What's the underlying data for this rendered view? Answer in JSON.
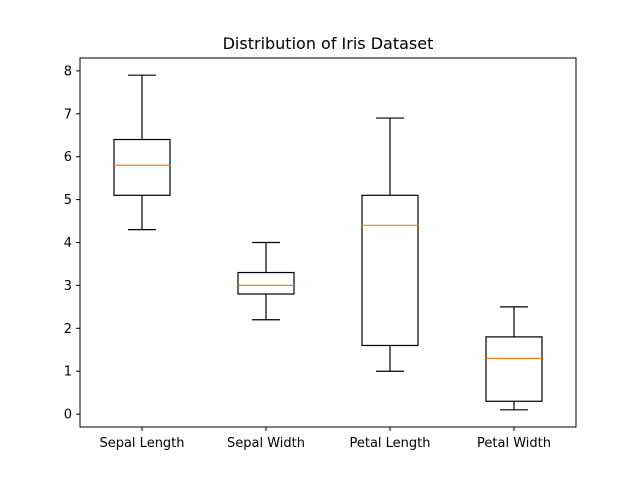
{
  "chart_data": {
    "type": "boxplot",
    "title": "Distribution of Iris Dataset",
    "xlabel": "",
    "ylabel": "",
    "ylim": [
      -0.3,
      8.3
    ],
    "yticks": [
      0,
      1,
      2,
      3,
      4,
      5,
      6,
      7,
      8
    ],
    "grid": false,
    "categories": [
      "Sepal Length",
      "Sepal Width",
      "Petal Length",
      "Petal Width"
    ],
    "boxes": [
      {
        "min": 4.3,
        "q1": 5.1,
        "median": 5.8,
        "q3": 6.4,
        "max": 7.9
      },
      {
        "min": 2.2,
        "q1": 2.8,
        "median": 3.0,
        "q3": 3.3,
        "max": 4.0
      },
      {
        "min": 1.0,
        "q1": 1.6,
        "median": 4.4,
        "q3": 5.1,
        "max": 6.9
      },
      {
        "min": 0.1,
        "q1": 0.3,
        "median": 1.3,
        "q3": 1.8,
        "max": 2.5
      }
    ],
    "colors": {
      "box": "#000000",
      "median": "#ff7f0e",
      "axes": "#000000"
    }
  }
}
